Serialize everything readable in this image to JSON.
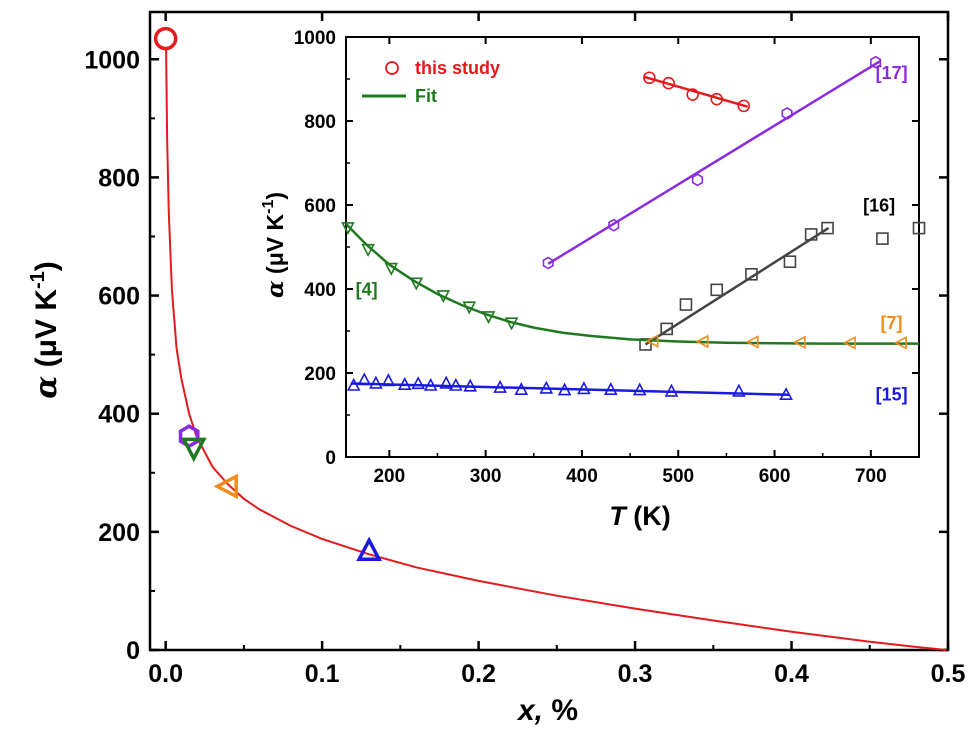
{
  "chart_data": [
    {
      "type": "scatter",
      "role": "main",
      "xlabel_var": "x,",
      "xlabel_unit": " %",
      "ylabel_var": "α",
      "ylabel_unit": " (μV K",
      "ylabel_exp": "-1",
      "ylabel_close": ")",
      "xlim": [
        -0.01,
        0.5
      ],
      "ylim": [
        0,
        1080
      ],
      "xticks": [
        "0.0",
        "0.1",
        "0.2",
        "0.3",
        "0.4",
        "0.5"
      ],
      "yticks": [
        "0",
        "200",
        "400",
        "600",
        "800",
        "1000"
      ],
      "fit_curve": {
        "color": "#e41a1c",
        "x": [
          0.0003,
          0.0006,
          0.001,
          0.002,
          0.004,
          0.007,
          0.01,
          0.015,
          0.02,
          0.03,
          0.04,
          0.05,
          0.06,
          0.08,
          0.1,
          0.13,
          0.16,
          0.2,
          0.25,
          0.3,
          0.35,
          0.4,
          0.45,
          0.48,
          0.499
        ],
        "y": [
          1020,
          940,
          860,
          740,
          610,
          510,
          460,
          400,
          360,
          310,
          280,
          256,
          238,
          210,
          188,
          162,
          140,
          117,
          92,
          70,
          50,
          31,
          14,
          5,
          0
        ]
      },
      "markers": [
        {
          "x": 0.0,
          "y": 1035,
          "shape": "circle",
          "color": "#e41a1c"
        },
        {
          "x": 0.015,
          "y": 362,
          "shape": "hexagon",
          "color": "#8a2be2"
        },
        {
          "x": 0.018,
          "y": 343,
          "shape": "triangle-down",
          "color": "#1f7a1f"
        },
        {
          "x": 0.04,
          "y": 277,
          "shape": "triangle-left",
          "color": "#f28c1a"
        },
        {
          "x": 0.13,
          "y": 167,
          "shape": "triangle-up",
          "color": "#1a1adf"
        }
      ]
    },
    {
      "type": "line",
      "role": "inset",
      "xlabel_var": "T",
      "xlabel_unit": " (K)",
      "ylabel_var": "α",
      "ylabel_unit": " (μV K",
      "ylabel_exp": "-1",
      "ylabel_close": ")",
      "xlim": [
        155,
        750
      ],
      "ylim": [
        0,
        1000
      ],
      "xticks": [
        200,
        300,
        400,
        500,
        600,
        700
      ],
      "yticks": [
        0,
        200,
        400,
        600,
        800,
        1000
      ],
      "legend": [
        {
          "label": "this study",
          "color": "#e41a1c",
          "kind": "marker"
        },
        {
          "label": "Fit",
          "color": "#1f7a1f",
          "kind": "line"
        }
      ],
      "annotations": [
        {
          "text": "[17]",
          "color": "#8a2be2",
          "x": 705,
          "y": 900
        },
        {
          "text": "[16]",
          "color": "#000000",
          "x": 692,
          "y": 585
        },
        {
          "text": "[4]",
          "color": "#1f7a1f",
          "x": 165,
          "y": 385
        },
        {
          "text": "[7]",
          "color": "#f28c1a",
          "x": 710,
          "y": 305
        },
        {
          "text": "[15]",
          "color": "#1a1adf",
          "x": 705,
          "y": 135
        }
      ],
      "series": [
        {
          "name": "this study",
          "color": "#e41a1c",
          "marker": "circle",
          "x": [
            470,
            490,
            515,
            540,
            568
          ],
          "y": [
            903,
            890,
            863,
            852,
            836
          ],
          "fit": {
            "x": [
              465,
              572
            ],
            "y": [
              905,
              834
            ]
          }
        },
        {
          "color": "#8a2be2",
          "marker": "hexagon",
          "x": [
            365,
            433,
            520,
            613,
            705
          ],
          "y": [
            462,
            552,
            660,
            818,
            940
          ],
          "fit": {
            "x": [
              365,
              710
            ],
            "y": [
              460,
              943
            ]
          }
        },
        {
          "color": "#444444",
          "marker": "square",
          "x": [
            466,
            488,
            508,
            540,
            576,
            616,
            638,
            655,
            712,
            750
          ],
          "y": [
            268,
            305,
            363,
            398,
            435,
            465,
            530,
            545,
            520,
            545
          ],
          "fit": {
            "x": [
              466,
              656
            ],
            "y": [
              268,
              545
            ]
          }
        },
        {
          "color": "#1f7a1f",
          "marker": "triangle-down",
          "x": [
            157,
            178,
            202,
            228,
            256,
            283,
            303,
            327
          ],
          "y": [
            547,
            495,
            450,
            415,
            385,
            358,
            335,
            320
          ],
          "fit": {
            "x": [
              155,
              175,
              200,
              225,
              250,
              275,
              300,
              325,
              350,
              380,
              410,
              450,
              500,
              550,
              600,
              650,
              700,
              750
            ],
            "y": [
              555,
              508,
              458,
              420,
              388,
              362,
              340,
              322,
              308,
              296,
              288,
              280,
              275,
              272,
              271,
              270,
              270,
              270
            ]
          }
        },
        {
          "color": "#f28c1a",
          "marker": "triangle-left",
          "x": [
            474,
            526,
            578,
            627,
            679,
            732
          ],
          "y": [
            276,
            275,
            274,
            273,
            272,
            272
          ]
        },
        {
          "color": "#1a1adf",
          "marker": "triangle-up",
          "x": [
            163,
            174,
            186,
            199,
            216,
            230,
            243,
            259,
            269,
            284,
            315,
            337,
            363,
            382,
            402,
            430,
            460,
            493,
            563,
            612
          ],
          "y": [
            170,
            183,
            175,
            181,
            172,
            174,
            170,
            175,
            170,
            168,
            165,
            160,
            163,
            159,
            162,
            160,
            159,
            156,
            156,
            148
          ],
          "fit": {
            "x": [
              160,
              615
            ],
            "y": [
              175,
              148
            ]
          }
        }
      ]
    }
  ]
}
